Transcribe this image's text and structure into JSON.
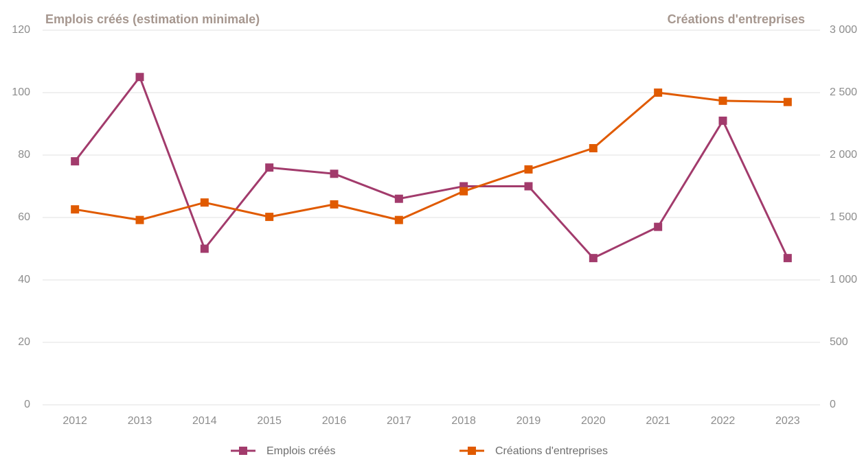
{
  "chart_data": {
    "type": "line",
    "y_title": "Emplois créés (estimation minimale)",
    "y2_title": "Créations d'entreprises",
    "categories": [
      "2012",
      "2013",
      "2014",
      "2015",
      "2016",
      "2017",
      "2018",
      "2019",
      "2020",
      "2021",
      "2022",
      "2023"
    ],
    "series": [
      {
        "name": "Emplois créés",
        "color": "#a23b6c",
        "values": [
          78,
          105,
          50,
          76,
          74,
          66,
          70,
          70,
          47,
          57,
          91,
          47
        ]
      },
      {
        "name": "Créations d'entreprises",
        "color": "#e05a00",
        "axis": "y2",
        "values": [
          1565,
          1480,
          1620,
          1505,
          1605,
          1480,
          1710,
          1885,
          2055,
          2500,
          2435,
          2425
        ]
      }
    ],
    "ylim": [
      0,
      120
    ],
    "yticks": [
      0,
      20,
      40,
      60,
      80,
      100,
      120
    ],
    "y2lim": [
      0,
      3000
    ],
    "y2ticks": [
      0,
      500,
      {
        "value": 1000,
        "label": "1 000"
      },
      {
        "value": 1500,
        "label": "1 500"
      },
      {
        "value": 2000,
        "label": "2 000"
      },
      {
        "value": 2500,
        "label": "2 500"
      },
      {
        "value": 3000,
        "label": "3 000"
      }
    ],
    "grid": true,
    "legend": "bottom"
  }
}
